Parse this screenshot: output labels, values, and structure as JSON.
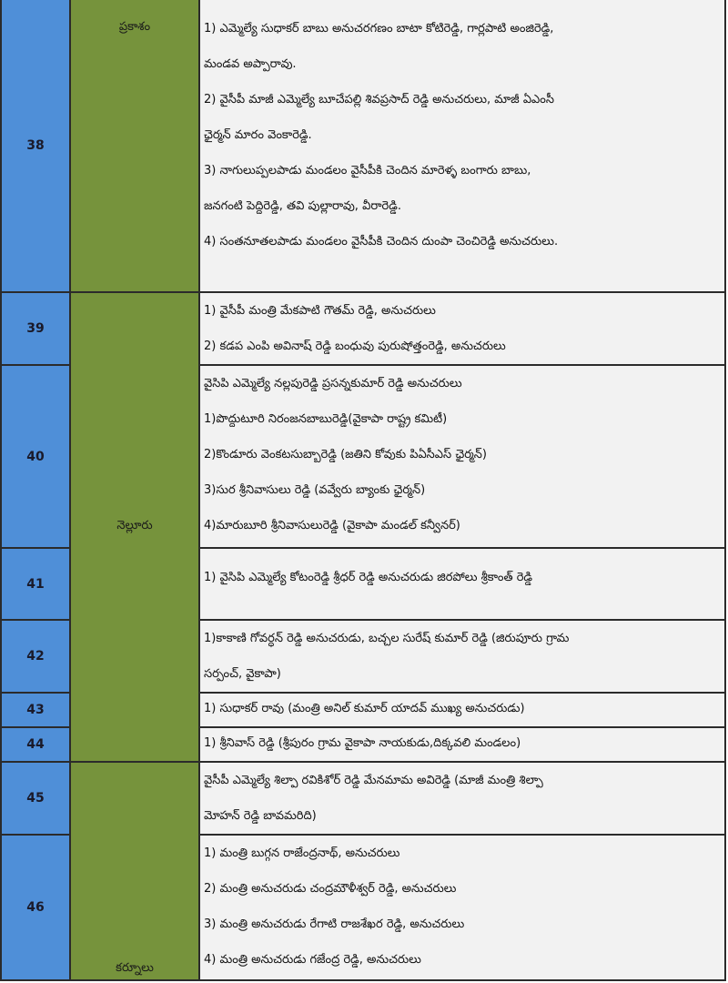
{
  "colors": {
    "number_column": "#4f8fd8",
    "district_column": "#76933c",
    "text_column": "#f2f2f2"
  },
  "districts": [
    "ప్రకాశం",
    "నెల్లూరు",
    "కర్నూలు"
  ],
  "rows": [
    {
      "num": "38",
      "lines": [
        "1) ఎమ్మెల్యే సుధాకర్ బాబు అనుచరగణం బాటా కోటిరెడ్డి, గార్లపాటి అంజిరెడ్డి,",
        "మండవ అప్పారావు.",
        "2) వైసీపీ మాజీ ఎమ్మెల్యే బూచేపల్లి శివప్రసాద్ రెడ్డి అనుచరులు, మాజీ ఏఎంసీ",
        "ఛైర్మన్ మారం వెంకారెడ్డి.",
        "3) నాగులుప్పలపాడు మండలం వైసీపీకి చెందిన మారెళ్ళ బంగారు బాబు,",
        "జనగంటి పెద్దిరెడ్డి, తవి పుల్లారావు, వీరారెడ్డి.",
        "4) సంతనూతలపాడు మండలం వైసీపీకి చెందిన దుంపా చెంచిరెడ్డి అనుచరులు."
      ]
    },
    {
      "num": "39",
      "lines": [
        "1) వైసీపీ మంత్రి మేకపాటి గౌతమ్ రెడ్డి, అనుచరులు",
        "2) కడప ఎంపి అవినాష్ రెడ్డి బంధువు పురుషోత్తంరెడ్డి, అనుచరులు"
      ]
    },
    {
      "num": "40",
      "lines": [
        "వైసిపి ఎమ్మెల్యే నల్లపురెడ్డి ప్రసన్నకుమార్ రెడ్డి అనుచరులు",
        "1)పొద్దుటూరి నిరంజనబాబురెడ్డి(వైకాపా రాష్ట్ర కమిటీ)",
        "2)కొండూరు వెంకటసుబ్బారెడ్డి (జతిని కోవుకు పిఏసీఎస్ ఛైర్మన్)",
        "3)సుర శ్రీనివాసులు రెడ్డి (వవ్వేరు బ్యాంకు ఛైర్మన్)",
        "4)మారుబూరి శ్రీనివాసులురెడ్డి (వైకాపా మండల్ కన్వీనర్)"
      ]
    },
    {
      "num": "41",
      "lines": [
        "1) వైసిపి ఎమ్మెల్యే కోటంరెడ్డి శ్రీధర్ రెడ్డి అనుచరుడు జిరపోలు శ్రీకాంత్ రెడ్డి"
      ]
    },
    {
      "num": "42",
      "lines": [
        "1)కాకాణి గోవర్ధన్ రెడ్డి అనుచరుడు, బచ్చల సురేష్ కుమార్ రెడ్డి (జిరుపూరు గ్రామ",
        "సర్పంచ్, వైకాపా)"
      ]
    },
    {
      "num": "43",
      "lines": [
        "1) సుధాకర్ రావు (మంత్రి అనిల్ కుమార్ యాదవ్ ముఖ్య అనుచరుడు)"
      ]
    },
    {
      "num": "44",
      "lines": [
        "1) శ్రీనివాస్ రెడ్డి (శ్రీపురం గ్రామ వైకాపా నాయకుడు,దిక్కవలి మండలం)"
      ]
    },
    {
      "num": "45",
      "lines": [
        "వైసీపీ ఎమ్మెల్యే శిల్పా రవికిశోర్ రెడ్డి మేనమామ అవిరెడ్డి (మాజీ మంత్రి శిల్పా",
        "మోహన్ రెడ్డి బావమరిది)"
      ]
    },
    {
      "num": "46",
      "lines": [
        "1) మంత్రి బుగ్గన రాజేంద్రనాథ్, అనుచరులు",
        "2) మంత్రి అనుచరుడు చంద్రమౌళీశ్వర్ రెడ్డి, అనుచరులు",
        "3) మంత్రి అనుచరుడు రేగాటి రాజశేఖర రెడ్డి, అనుచరులు",
        "4) మంత్రి అనుచరుడు గజేంద్ర రెడ్డి, అనుచరులు"
      ]
    }
  ]
}
